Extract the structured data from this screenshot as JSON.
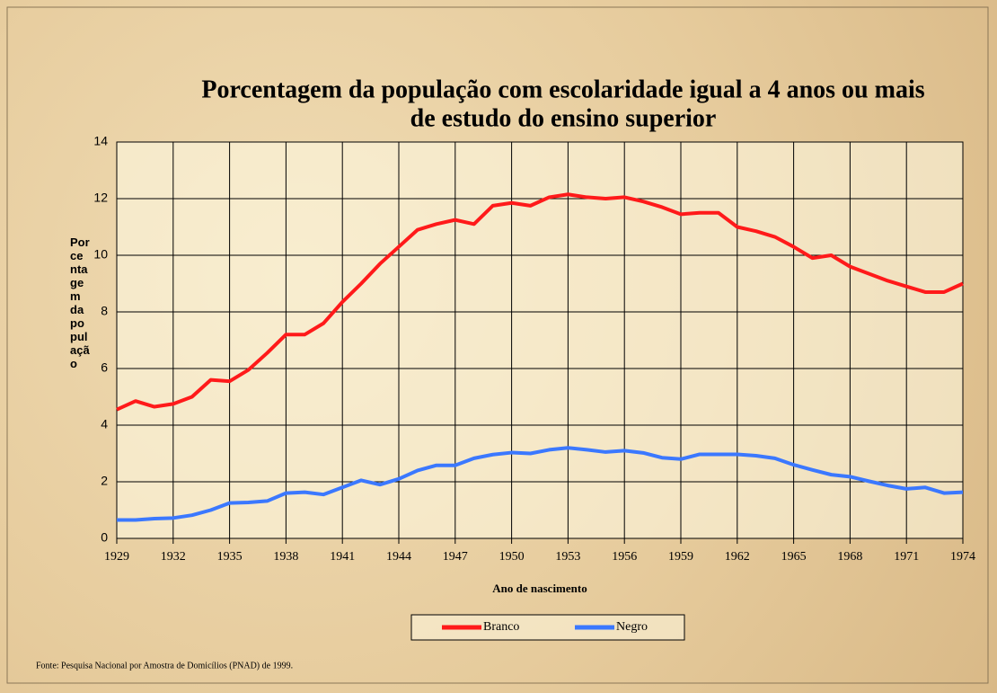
{
  "chart_data": {
    "type": "line",
    "title": [
      "Porcentagem da população com escolaridade igual a 4 anos ou mais",
      "de estudo do ensino superior"
    ],
    "x_label": "Ano de nascimento",
    "y_label": "Porcentagem da população",
    "source": "Fonte: Pesquisa Nacional por Amostra de Domicílios (PNAD) de 1999.",
    "x": [
      1929,
      1930,
      1931,
      1932,
      1933,
      1934,
      1935,
      1936,
      1937,
      1938,
      1939,
      1940,
      1941,
      1942,
      1943,
      1944,
      1945,
      1946,
      1947,
      1948,
      1949,
      1950,
      1951,
      1952,
      1953,
      1954,
      1955,
      1956,
      1957,
      1958,
      1959,
      1960,
      1961,
      1962,
      1963,
      1964,
      1965,
      1966,
      1967,
      1968,
      1969,
      1970,
      1971,
      1972,
      1973,
      1974
    ],
    "series": [
      {
        "name": "Branco",
        "color": "#ff1a1a",
        "values": [
          4.55,
          4.85,
          4.65,
          4.75,
          5.0,
          5.6,
          5.55,
          5.95,
          6.55,
          7.2,
          7.2,
          7.6,
          8.35,
          9.0,
          9.7,
          10.3,
          10.9,
          11.1,
          11.25,
          11.1,
          11.75,
          11.85,
          11.75,
          12.05,
          12.15,
          12.05,
          12.0,
          12.05,
          11.9,
          11.7,
          11.45,
          11.5,
          11.5,
          11.0,
          10.85,
          10.65,
          10.3,
          9.9,
          10.0,
          9.6,
          9.35,
          9.1,
          8.9,
          8.7,
          8.7,
          9.0
        ]
      },
      {
        "name": "Negro",
        "color": "#3b78ff",
        "values": [
          0.65,
          0.65,
          0.7,
          0.72,
          0.82,
          1.0,
          1.25,
          1.27,
          1.32,
          1.6,
          1.63,
          1.55,
          1.8,
          2.05,
          1.9,
          2.1,
          2.4,
          2.58,
          2.58,
          2.83,
          2.96,
          3.03,
          3.0,
          3.13,
          3.2,
          3.13,
          3.05,
          3.1,
          3.02,
          2.85,
          2.8,
          2.97,
          2.97,
          2.97,
          2.92,
          2.83,
          2.6,
          2.42,
          2.25,
          2.18,
          2.02,
          1.87,
          1.75,
          1.8,
          1.6,
          1.63
        ]
      }
    ],
    "xlim": [
      1929,
      1974
    ],
    "xticks": [
      1929,
      1932,
      1935,
      1938,
      1941,
      1944,
      1947,
      1950,
      1953,
      1956,
      1959,
      1962,
      1965,
      1968,
      1971,
      1974
    ],
    "ylim": [
      0,
      14
    ],
    "yticks": [
      0,
      2,
      4,
      6,
      8,
      10,
      12,
      14
    ],
    "grid": true,
    "legend": "bottom"
  }
}
